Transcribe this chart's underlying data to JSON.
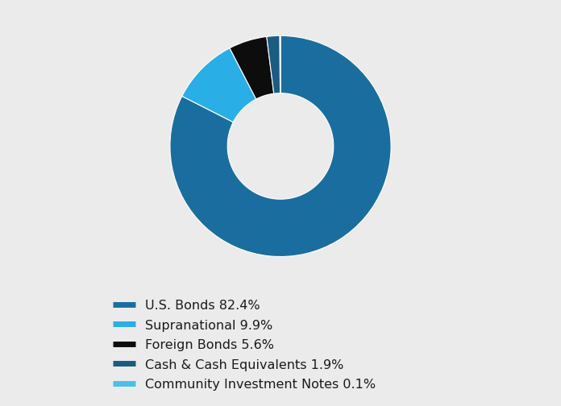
{
  "labels": [
    "U.S. Bonds",
    "Supranational",
    "Foreign Bonds",
    "Cash & Cash Equivalents",
    "Community Investment Notes"
  ],
  "values": [
    82.4,
    9.9,
    5.6,
    1.9,
    0.1
  ],
  "colors": [
    "#1a6e9f",
    "#29aee6",
    "#0d0d0d",
    "#1a5c82",
    "#4bbfe8"
  ],
  "legend_labels": [
    "U.S. Bonds 82.4%",
    "Supranational 9.9%",
    "Foreign Bonds 5.6%",
    "Cash & Cash Equivalents 1.9%",
    "Community Investment Notes 0.1%"
  ],
  "background_color": "#ebebeb",
  "startangle": 90,
  "donut_width": 0.52,
  "legend_fontsize": 11.5
}
